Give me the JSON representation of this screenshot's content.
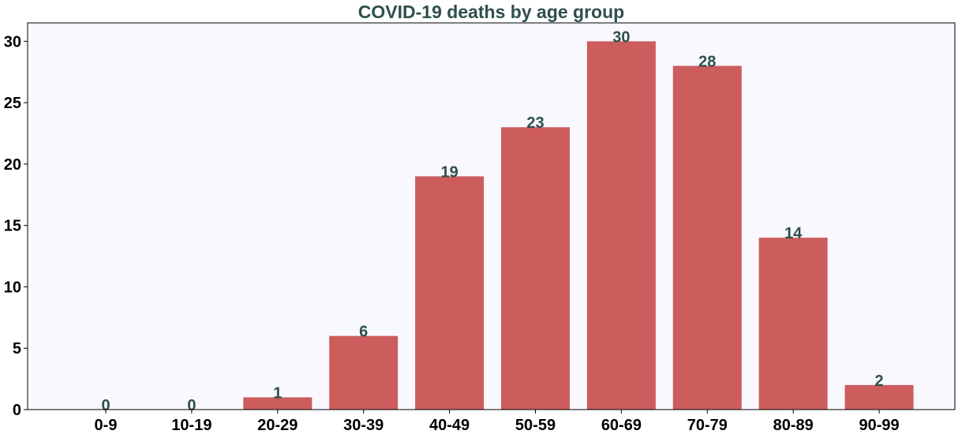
{
  "colors": {
    "background": "#ffffff",
    "plot_background": "#f8f8fe",
    "bar": "#cd5c5c",
    "title": "#2f4f4f",
    "data_label": "#2f4f4f",
    "tick_label": "#000000",
    "axis": "#000000"
  },
  "chart_data": {
    "type": "bar",
    "title": "COVID-19 deaths by age group",
    "xlabel": "",
    "ylabel": "",
    "categories": [
      "0-9",
      "10-19",
      "20-29",
      "30-39",
      "40-49",
      "50-59",
      "60-69",
      "70-79",
      "80-89",
      "90-99"
    ],
    "values": [
      0,
      0,
      1,
      6,
      19,
      23,
      30,
      28,
      14,
      2
    ],
    "data_labels": [
      "0",
      "0",
      "1",
      "6",
      "19",
      "23",
      "30",
      "28",
      "14",
      "2"
    ],
    "y_ticks": [
      0,
      5,
      10,
      15,
      20,
      25,
      30
    ],
    "y_tick_labels": [
      "0",
      "5",
      "10",
      "15",
      "20",
      "25",
      "30"
    ],
    "ylim": [
      0,
      31.5
    ],
    "grid": false,
    "legend": "none"
  }
}
